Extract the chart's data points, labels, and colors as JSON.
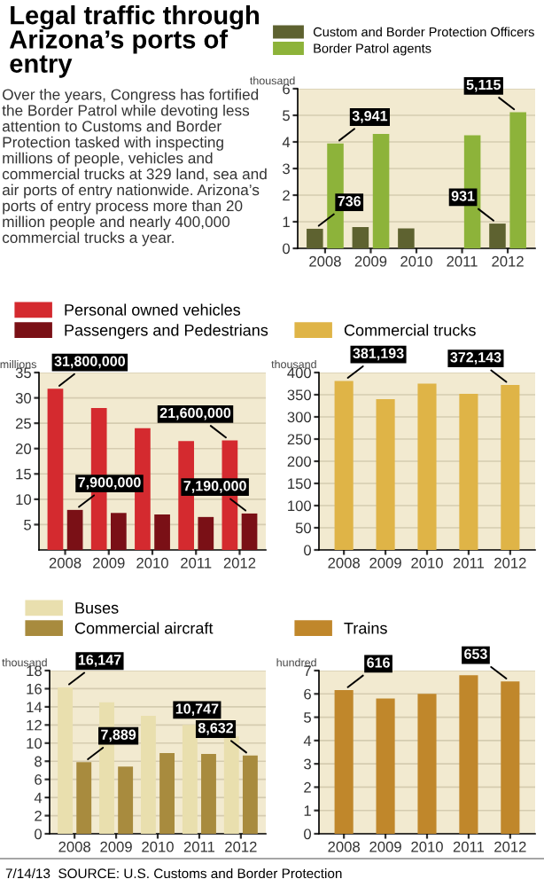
{
  "chart_data": [
    {
      "type": "other",
      "title": "Legal traffic through Arizona’s ports of entry",
      "subtitle": "Over the years, Congress has fortified the Border Patrol while devoting less attention to Customs and Border Protection tasked with inspecting millions of people, vehicles and commercial trucks at 329 land, sea and air ports of entry nationwide. Arizona’s ports of entry process more than 20 million people and nearly 400,000 commercial trucks a year.",
      "annotations": [
        "7/14/13  SOURCE: U.S. Customs and Border Protection"
      ]
    },
    {
      "type": "bar",
      "categories": [
        "2008",
        "2009",
        "2010",
        "2011",
        "2012"
      ],
      "ylim": [
        0,
        6
      ],
      "yticks": [
        0,
        1,
        2,
        3,
        4,
        5,
        6
      ],
      "grid": "y",
      "legend": "top",
      "annotations": [
        "thousand",
        {
          "text": "736",
          "x": "2008",
          "y": 0.736
        },
        {
          "text": "931",
          "x": "2012",
          "y": 0.931
        },
        {
          "text": "3,941",
          "x": "2008",
          "y": 3.941
        },
        {
          "text": "5,115",
          "x": "2012",
          "y": 5.115
        }
      ],
      "series": [
        {
          "name": "Custom and Border Protection Officers",
          "color": "#5e6230",
          "values": [
            0.736,
            0.8,
            0.75,
            null,
            0.931
          ]
        },
        {
          "name": "Border Patrol agents",
          "color": "#8db33a",
          "values": [
            3.941,
            4.3,
            null,
            4.25,
            5.115
          ]
        }
      ]
    },
    {
      "type": "bar",
      "categories": [
        "2008",
        "2009",
        "2010",
        "2011",
        "2012"
      ],
      "ylim": [
        0,
        35
      ],
      "yticks": [
        5,
        10,
        15,
        20,
        25,
        30,
        35
      ],
      "grid": "y",
      "legend": "top",
      "annotations": [
        "millions",
        {
          "text": "31,800,000",
          "x": "2008",
          "y": 31.8
        },
        {
          "text": "21,600,000",
          "x": "2012",
          "y": 21.6
        },
        {
          "text": "7,900,000",
          "x": "2008",
          "y": 7.9
        },
        {
          "text": "7,190,000",
          "x": "2012",
          "y": 7.19
        }
      ],
      "series": [
        {
          "name": "Personal owned vehicles",
          "color": "#d42a2f",
          "values": [
            31.8,
            28,
            24,
            21.5,
            21.6
          ]
        },
        {
          "name": "Passengers and Pedestrians",
          "color": "#7a1016",
          "values": [
            7.9,
            7.3,
            7,
            6.5,
            7.19
          ]
        }
      ]
    },
    {
      "type": "bar",
      "categories": [
        "2008",
        "2009",
        "2010",
        "2011",
        "2012"
      ],
      "ylim": [
        0,
        400
      ],
      "yticks": [
        0,
        50,
        100,
        150,
        200,
        250,
        300,
        350,
        400
      ],
      "grid": "y",
      "legend": "top",
      "annotations": [
        "thousand",
        {
          "text": "381,193",
          "x": "2008",
          "y": 381.193
        },
        {
          "text": "372,143",
          "x": "2012",
          "y": 372.143
        }
      ],
      "series": [
        {
          "name": "Commercial trucks",
          "color": "#dfb447",
          "values": [
            381.193,
            340,
            375,
            352,
            372.143
          ]
        }
      ]
    },
    {
      "type": "bar",
      "categories": [
        "2008",
        "2009",
        "2010",
        "2011",
        "2012"
      ],
      "ylim": [
        0,
        18
      ],
      "yticks": [
        0,
        2,
        4,
        6,
        8,
        10,
        12,
        14,
        16,
        18
      ],
      "grid": "y",
      "legend": "top",
      "annotations": [
        "thousand",
        {
          "text": "16,147",
          "x": "2008",
          "y": 16.147
        },
        {
          "text": "10,747",
          "x": "2012",
          "y": 10.747
        },
        {
          "text": "7,889",
          "x": "2008",
          "y": 7.889
        },
        {
          "text": "8,632",
          "x": "2012",
          "y": 8.632
        }
      ],
      "series": [
        {
          "name": "Buses",
          "color": "#e9dfae",
          "values": [
            16.147,
            14.5,
            13,
            12,
            10.747
          ]
        },
        {
          "name": "Commercial aircraft",
          "color": "#a88b3e",
          "values": [
            7.889,
            7.4,
            8.9,
            8.8,
            8.632
          ]
        }
      ]
    },
    {
      "type": "bar",
      "categories": [
        "2008",
        "2009",
        "2010",
        "2011",
        "2012"
      ],
      "ylim": [
        0,
        7
      ],
      "yticks": [
        0,
        1,
        2,
        3,
        4,
        5,
        6,
        7
      ],
      "grid": "y",
      "legend": "top",
      "annotations": [
        "hundred",
        {
          "text": "616",
          "x": "2008",
          "y": 6.16
        },
        {
          "text": "653",
          "x": "2012",
          "y": 6.53
        }
      ],
      "series": [
        {
          "name": "Trains",
          "color": "#c0872b",
          "values": [
            6.16,
            5.8,
            6.0,
            6.8,
            6.53
          ]
        }
      ]
    }
  ]
}
